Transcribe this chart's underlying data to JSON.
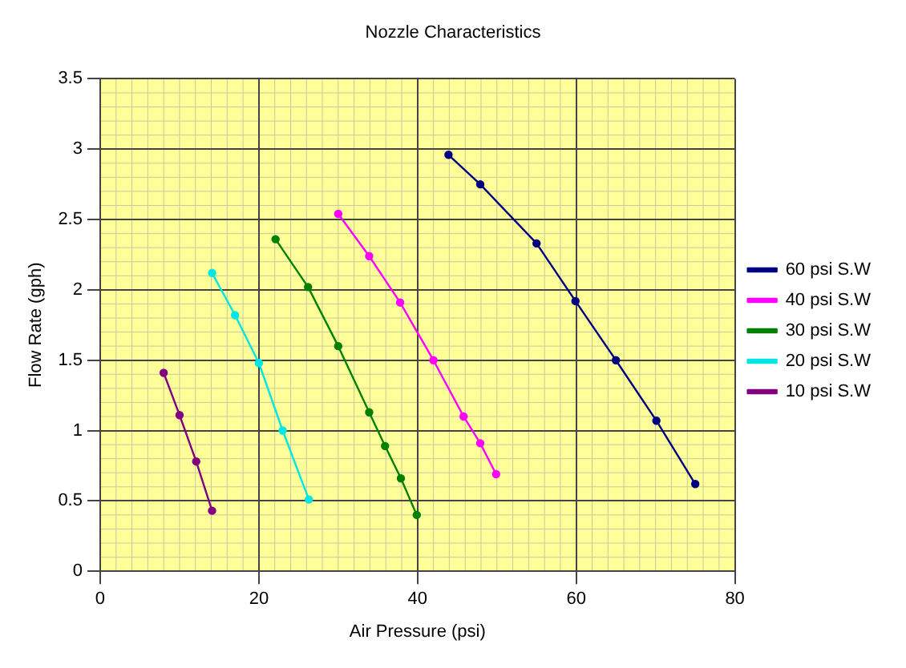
{
  "chart_data": {
    "type": "line",
    "title": "Nozzle Characteristics",
    "xlabel": "Air Pressure (psi)",
    "ylabel": "Flow Rate (gph)",
    "xlim": [
      0,
      80
    ],
    "xticks": [
      0,
      20,
      40,
      60,
      80
    ],
    "ylim": [
      0,
      3.5
    ],
    "yticks": [
      0,
      0.5,
      1,
      1.5,
      2,
      2.5,
      3,
      3.5
    ],
    "grid": true,
    "legend": "right",
    "marker": "circle",
    "series": [
      {
        "name": "60 psi S.W",
        "color": "#000080",
        "x": [
          43.9,
          47.9,
          55,
          59.9,
          65,
          70.1,
          75
        ],
        "values": [
          2.96,
          2.75,
          2.33,
          1.92,
          1.5,
          1.07,
          0.62
        ]
      },
      {
        "name": "40 psi S.W",
        "color": "#ff00ff",
        "x": [
          30,
          33.9,
          37.8,
          42,
          45.8,
          47.9,
          49.9
        ],
        "values": [
          2.54,
          2.24,
          1.91,
          1.5,
          1.1,
          0.91,
          0.69
        ]
      },
      {
        "name": "30 psi S.W",
        "color": "#008000",
        "x": [
          22.1,
          26.2,
          30,
          33.9,
          35.9,
          37.9,
          39.9
        ],
        "values": [
          2.36,
          2.02,
          1.6,
          1.13,
          0.89,
          0.66,
          0.4
        ]
      },
      {
        "name": "20 psi S.W",
        "color": "#00e5e5",
        "x": [
          14.1,
          17,
          20,
          23,
          26.3
        ],
        "values": [
          2.12,
          1.82,
          1.48,
          1.0,
          0.51
        ]
      },
      {
        "name": "10 psi S.W",
        "color": "#800080",
        "x": [
          8,
          10,
          12.1,
          14.1
        ],
        "values": [
          1.41,
          1.11,
          0.78,
          0.43
        ]
      }
    ]
  }
}
